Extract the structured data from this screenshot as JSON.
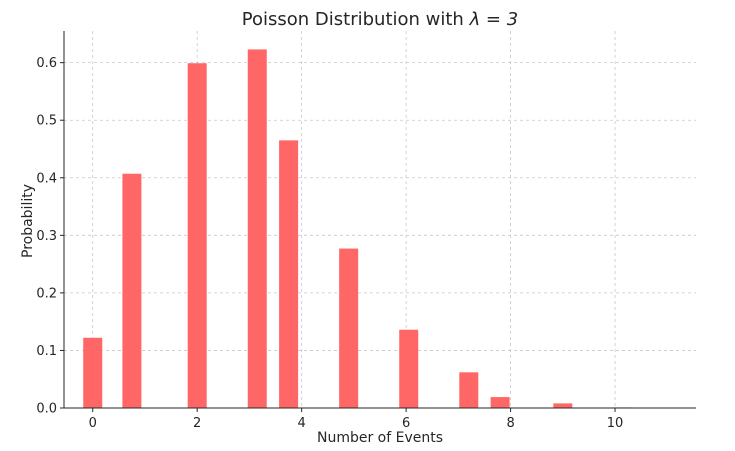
{
  "chart_data": {
    "type": "bar",
    "title_prefix": "Poisson Distribution with ",
    "title_math": "λ = 3",
    "xlabel": "Number of Events",
    "ylabel": "Probability",
    "x": [
      0,
      0.75,
      2,
      3.15,
      3.75,
      4.9,
      6.05,
      7.2,
      7.8,
      9,
      10.15
    ],
    "values": [
      0.122,
      0.407,
      0.599,
      0.623,
      0.465,
      0.277,
      0.136,
      0.062,
      0.019,
      0.008,
      0.001
    ],
    "bar_color": "#ff6666",
    "xlim": [
      -0.55,
      11.55
    ],
    "ylim": [
      0,
      0.655
    ],
    "xticks": [
      0,
      2,
      4,
      6,
      8,
      10
    ],
    "xtick_labels": [
      "0",
      "2",
      "4",
      "6",
      "8",
      "10"
    ],
    "yticks": [
      0.0,
      0.1,
      0.2,
      0.3,
      0.4,
      0.5,
      0.6
    ],
    "ytick_labels": [
      "0.0",
      "0.1",
      "0.2",
      "0.3",
      "0.4",
      "0.5",
      "0.6"
    ],
    "grid": true
  }
}
